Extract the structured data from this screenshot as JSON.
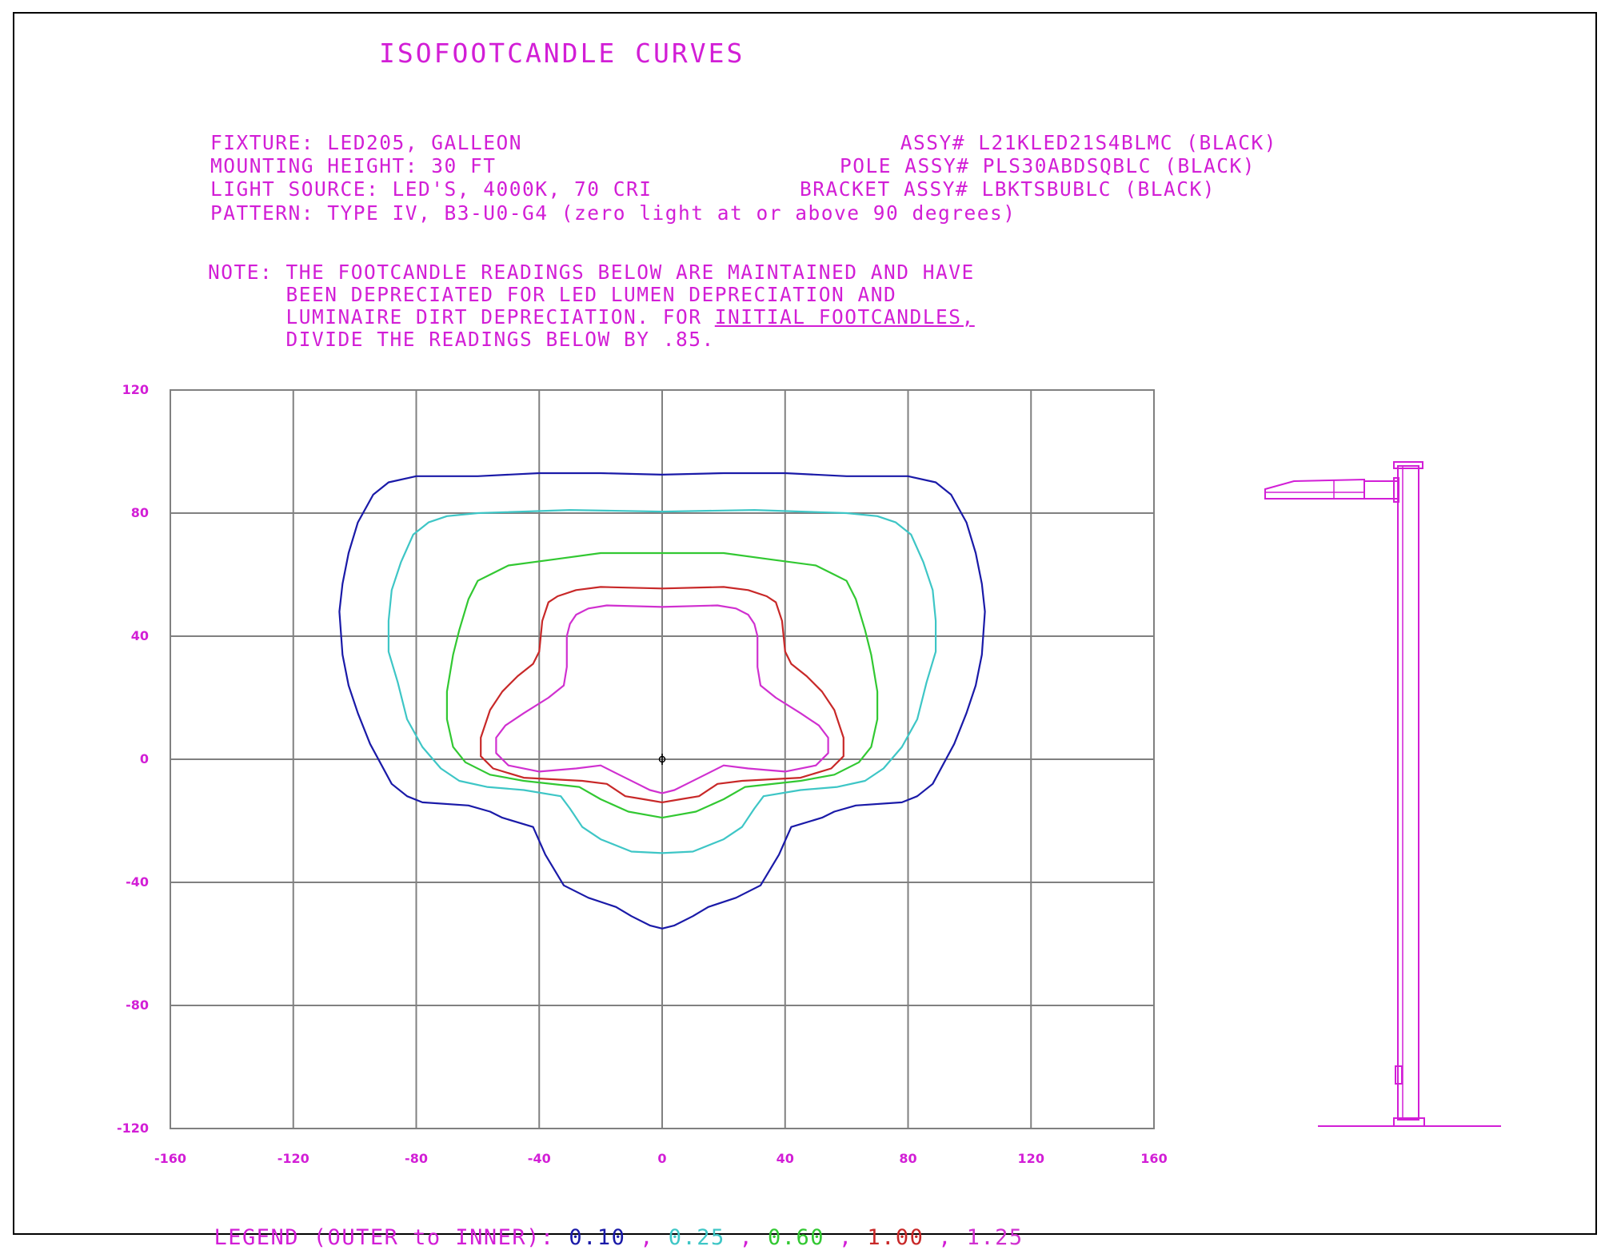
{
  "title": "ISOFOOTCANDLE CURVES",
  "header_left": [
    "FIXTURE: LED205, GALLEON",
    "MOUNTING HEIGHT: 30 FT",
    "LIGHT SOURCE: LED'S, 4000K, 70 CRI",
    "PATTERN: TYPE IV, B3-U0-G4 (zero light at or above 90 degrees)"
  ],
  "header_right": [
    "ASSY# L21KLED21S4BLMC (BLACK)",
    "POLE ASSY# PLS30ABDSQBLC (BLACK)",
    "BRACKET ASSY# LBKTSBUBLC (BLACK)"
  ],
  "note": {
    "line1": "NOTE: THE FOOTCANDLE READINGS BELOW ARE MAINTAINED AND HAVE",
    "line2": "      BEEN DEPRECIATED FOR LED LUMEN DEPRECIATION AND",
    "line3_a": "      LUMINAIRE DIRT DEPRECIATION. FOR ",
    "line3_b": "INITIAL FOOTCANDLES,",
    "line4": "      DIVIDE THE READINGS BELOW BY .85."
  },
  "legend": {
    "label": "LEGEND (OUTER to INNER): ",
    "sep": " , "
  },
  "colors": {
    "text": "#d21ed6",
    "grid": "#808080",
    "pole": "#d21ed6"
  },
  "chart_data": {
    "type": "line",
    "xlim": [
      -160,
      160
    ],
    "ylim": [
      -120,
      120
    ],
    "x_ticks": [
      -160,
      -120,
      -80,
      -40,
      0,
      40,
      80,
      120,
      160
    ],
    "y_ticks": [
      -120,
      -80,
      -40,
      0,
      40,
      80,
      120
    ],
    "grid": true,
    "series": [
      {
        "name": "0.10",
        "color": "#1a1aa8",
        "points": [
          [
            0,
            92.5
          ],
          [
            20,
            93
          ],
          [
            40,
            93
          ],
          [
            60,
            92
          ],
          [
            80,
            92
          ],
          [
            89,
            90
          ],
          [
            94,
            86
          ],
          [
            99,
            77
          ],
          [
            102,
            67
          ],
          [
            104,
            57
          ],
          [
            105,
            48
          ],
          [
            104,
            34
          ],
          [
            102,
            24
          ],
          [
            99,
            15
          ],
          [
            95,
            5
          ],
          [
            88,
            -8
          ],
          [
            83,
            -12
          ],
          [
            78,
            -14
          ],
          [
            63,
            -15
          ],
          [
            56,
            -17
          ],
          [
            52,
            -19
          ],
          [
            42,
            -22
          ],
          [
            38,
            -31
          ],
          [
            32,
            -41
          ],
          [
            24,
            -45
          ],
          [
            15,
            -48
          ],
          [
            10,
            -51
          ],
          [
            4,
            -54
          ],
          [
            0,
            -55
          ],
          [
            -4,
            -54
          ],
          [
            -10,
            -51
          ],
          [
            -15,
            -48
          ],
          [
            -24,
            -45
          ],
          [
            -32,
            -41
          ],
          [
            -38,
            -31
          ],
          [
            -42,
            -22
          ],
          [
            -52,
            -19
          ],
          [
            -56,
            -17
          ],
          [
            -63,
            -15
          ],
          [
            -78,
            -14
          ],
          [
            -83,
            -12
          ],
          [
            -88,
            -8
          ],
          [
            -95,
            5
          ],
          [
            -99,
            15
          ],
          [
            -102,
            24
          ],
          [
            -104,
            34
          ],
          [
            -105,
            48
          ],
          [
            -104,
            57
          ],
          [
            -102,
            67
          ],
          [
            -99,
            77
          ],
          [
            -94,
            86
          ],
          [
            -89,
            90
          ],
          [
            -80,
            92
          ],
          [
            -60,
            92
          ],
          [
            -40,
            93
          ],
          [
            -20,
            93
          ],
          [
            0,
            92.5
          ]
        ]
      },
      {
        "name": "0.25",
        "color": "#3ec6c6",
        "points": [
          [
            0,
            80.5
          ],
          [
            30,
            81
          ],
          [
            60,
            80
          ],
          [
            70,
            79
          ],
          [
            76,
            77
          ],
          [
            81,
            73
          ],
          [
            85,
            64
          ],
          [
            88,
            55
          ],
          [
            89,
            45
          ],
          [
            89,
            35
          ],
          [
            86,
            25
          ],
          [
            83,
            13
          ],
          [
            78,
            4
          ],
          [
            72,
            -3
          ],
          [
            66,
            -7
          ],
          [
            57,
            -9
          ],
          [
            45,
            -10
          ],
          [
            33,
            -12
          ],
          [
            30,
            -16
          ],
          [
            26,
            -22
          ],
          [
            20,
            -26
          ],
          [
            10,
            -30
          ],
          [
            0,
            -30.5
          ],
          [
            -10,
            -30
          ],
          [
            -20,
            -26
          ],
          [
            -26,
            -22
          ],
          [
            -30,
            -16
          ],
          [
            -33,
            -12
          ],
          [
            -45,
            -10
          ],
          [
            -57,
            -9
          ],
          [
            -66,
            -7
          ],
          [
            -72,
            -3
          ],
          [
            -78,
            4
          ],
          [
            -83,
            13
          ],
          [
            -86,
            25
          ],
          [
            -89,
            35
          ],
          [
            -89,
            45
          ],
          [
            -88,
            55
          ],
          [
            -85,
            64
          ],
          [
            -81,
            73
          ],
          [
            -76,
            77
          ],
          [
            -70,
            79
          ],
          [
            -60,
            80
          ],
          [
            -30,
            81
          ],
          [
            0,
            80.5
          ]
        ]
      },
      {
        "name": "0.60",
        "color": "#32c832",
        "points": [
          [
            0,
            67
          ],
          [
            20,
            67
          ],
          [
            35,
            65
          ],
          [
            50,
            63
          ],
          [
            56,
            60
          ],
          [
            60,
            58
          ],
          [
            63,
            52
          ],
          [
            66,
            42
          ],
          [
            68,
            34
          ],
          [
            70,
            22
          ],
          [
            70,
            13
          ],
          [
            68,
            4
          ],
          [
            64,
            -1
          ],
          [
            56,
            -5
          ],
          [
            45,
            -7
          ],
          [
            27,
            -9
          ],
          [
            20,
            -13
          ],
          [
            11,
            -17
          ],
          [
            0,
            -19
          ],
          [
            -11,
            -17
          ],
          [
            -20,
            -13
          ],
          [
            -27,
            -9
          ],
          [
            -45,
            -7
          ],
          [
            -56,
            -5
          ],
          [
            -64,
            -1
          ],
          [
            -68,
            4
          ],
          [
            -70,
            13
          ],
          [
            -70,
            22
          ],
          [
            -68,
            34
          ],
          [
            -66,
            42
          ],
          [
            -63,
            52
          ],
          [
            -60,
            58
          ],
          [
            -56,
            60
          ],
          [
            -50,
            63
          ],
          [
            -35,
            65
          ],
          [
            -20,
            67
          ],
          [
            0,
            67
          ]
        ]
      },
      {
        "name": "1.00",
        "color": "#c82828",
        "points": [
          [
            0,
            55.5
          ],
          [
            20,
            56
          ],
          [
            28,
            55
          ],
          [
            34,
            53
          ],
          [
            37,
            51
          ],
          [
            39,
            45
          ],
          [
            40,
            35
          ],
          [
            42,
            31
          ],
          [
            47,
            27
          ],
          [
            52,
            22
          ],
          [
            56,
            16
          ],
          [
            59,
            7
          ],
          [
            59,
            1
          ],
          [
            55,
            -3
          ],
          [
            45,
            -6
          ],
          [
            26,
            -7
          ],
          [
            18,
            -8
          ],
          [
            12,
            -12
          ],
          [
            6,
            -13
          ],
          [
            0,
            -14
          ],
          [
            -6,
            -13
          ],
          [
            -12,
            -12
          ],
          [
            -18,
            -8
          ],
          [
            -26,
            -7
          ],
          [
            -45,
            -6
          ],
          [
            -55,
            -3
          ],
          [
            -59,
            1
          ],
          [
            -59,
            7
          ],
          [
            -56,
            16
          ],
          [
            -52,
            22
          ],
          [
            -47,
            27
          ],
          [
            -42,
            31
          ],
          [
            -40,
            35
          ],
          [
            -39,
            45
          ],
          [
            -37,
            51
          ],
          [
            -34,
            53
          ],
          [
            -28,
            55
          ],
          [
            -20,
            56
          ],
          [
            0,
            55.5
          ]
        ]
      },
      {
        "name": "1.25",
        "color": "#d030d0",
        "points": [
          [
            0,
            49.5
          ],
          [
            18,
            50
          ],
          [
            24,
            49
          ],
          [
            28,
            47
          ],
          [
            30,
            44
          ],
          [
            31,
            40
          ],
          [
            31,
            30
          ],
          [
            32,
            24
          ],
          [
            37,
            20
          ],
          [
            45,
            15
          ],
          [
            51,
            11
          ],
          [
            54,
            7
          ],
          [
            54,
            2
          ],
          [
            50,
            -2
          ],
          [
            40,
            -4
          ],
          [
            28,
            -3
          ],
          [
            20,
            -2
          ],
          [
            14,
            -5
          ],
          [
            8,
            -8
          ],
          [
            4,
            -10
          ],
          [
            0,
            -11
          ],
          [
            -4,
            -10
          ],
          [
            -8,
            -8
          ],
          [
            -14,
            -5
          ],
          [
            -20,
            -2
          ],
          [
            -28,
            -3
          ],
          [
            -40,
            -4
          ],
          [
            -50,
            -2
          ],
          [
            -54,
            2
          ],
          [
            -54,
            7
          ],
          [
            -51,
            11
          ],
          [
            -45,
            15
          ],
          [
            -37,
            20
          ],
          [
            -32,
            24
          ],
          [
            -31,
            30
          ],
          [
            -31,
            40
          ],
          [
            -30,
            44
          ],
          [
            -28,
            47
          ],
          [
            -24,
            49
          ],
          [
            -18,
            50
          ],
          [
            0,
            49.5
          ]
        ]
      }
    ],
    "origin_marker": [
      0,
      0
    ]
  }
}
